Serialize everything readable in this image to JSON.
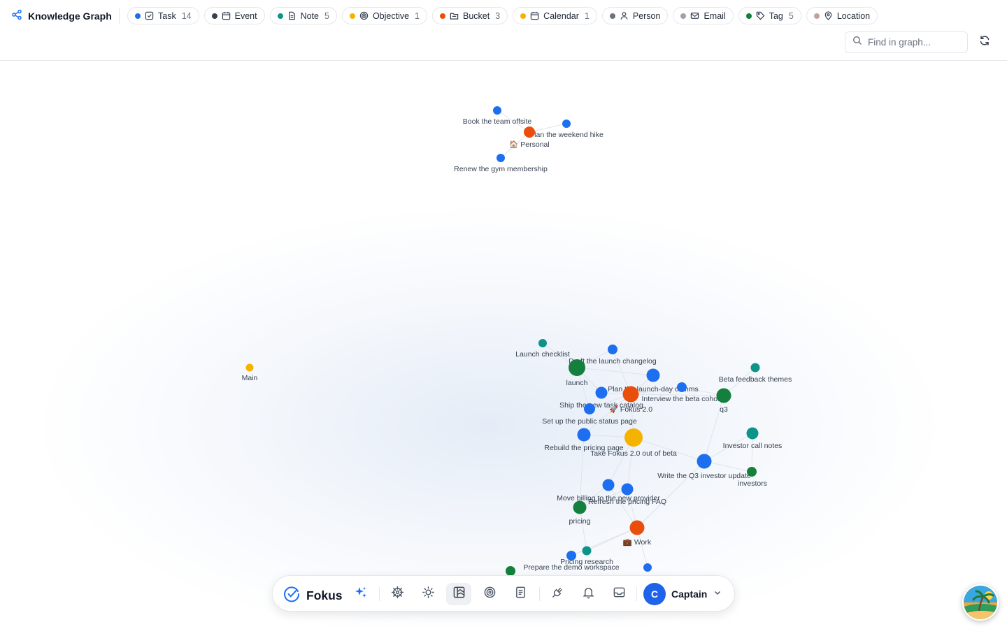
{
  "header": {
    "title": "Knowledge Graph",
    "chips": [
      {
        "label": "Task",
        "count": "14",
        "color": "#1e6ef0",
        "icon": "check-square-icon"
      },
      {
        "label": "Event",
        "count": "",
        "color": "#374151",
        "icon": "calendar-icon"
      },
      {
        "label": "Note",
        "count": "5",
        "color": "#0d9488",
        "icon": "file-text-icon"
      },
      {
        "label": "Objective",
        "count": "1",
        "color": "#f5b300",
        "icon": "target-icon"
      },
      {
        "label": "Bucket",
        "count": "3",
        "color": "#ea4e0c",
        "icon": "folder-icon"
      },
      {
        "label": "Calendar",
        "count": "1",
        "color": "#f5b300",
        "icon": "calendar-icon"
      },
      {
        "label": "Person",
        "count": "",
        "color": "#6b7280",
        "icon": "user-icon"
      },
      {
        "label": "Email",
        "count": "",
        "color": "#9ca3af",
        "icon": "mail-icon"
      },
      {
        "label": "Tag",
        "count": "5",
        "color": "#15803d",
        "icon": "tag-icon"
      },
      {
        "label": "Location",
        "count": "",
        "color": "#c4a29a",
        "icon": "map-pin-icon"
      }
    ],
    "search_placeholder": "Find in graph..."
  },
  "graph": {
    "colors": {
      "task": "#1e6ef0",
      "note": "#0d9488",
      "objective": "#f5b300",
      "bucket": "#ea4e0c",
      "tag": "#15803d",
      "calendar": "#f5b300"
    },
    "nodes": [
      {
        "id": "book",
        "type": "task",
        "label": "Book the team offsite"
      },
      {
        "id": "hike",
        "type": "task",
        "label": "Plan the weekend hike"
      },
      {
        "id": "personal",
        "type": "bucket",
        "label": "🏠 Personal"
      },
      {
        "id": "gym",
        "type": "task",
        "label": "Renew the gym membership"
      },
      {
        "id": "main",
        "type": "calendar",
        "label": "Main"
      },
      {
        "id": "checklist",
        "type": "note",
        "label": "Launch checklist"
      },
      {
        "id": "changelog",
        "type": "task",
        "label": "Draft the launch changelog"
      },
      {
        "id": "launch",
        "type": "tag",
        "label": "launch"
      },
      {
        "id": "comms",
        "type": "task",
        "label": "Plan the launch-day comms"
      },
      {
        "id": "cohort",
        "type": "task",
        "label": "Interview the beta cohort"
      },
      {
        "id": "betafb",
        "type": "note",
        "label": "Beta feedback themes"
      },
      {
        "id": "q3",
        "type": "tag",
        "label": "q3"
      },
      {
        "id": "catalog",
        "type": "task",
        "label": "Ship the new task catalog"
      },
      {
        "id": "fokus2",
        "type": "bucket",
        "label": "🚀 Fokus 2.0"
      },
      {
        "id": "status",
        "type": "task",
        "label": "Set up the public status page"
      },
      {
        "id": "rebuild",
        "type": "task",
        "label": "Rebuild the pricing page"
      },
      {
        "id": "objective",
        "type": "objective",
        "label": "Take Fokus 2.0 out of beta"
      },
      {
        "id": "callnotes",
        "type": "note",
        "label": "Investor call notes"
      },
      {
        "id": "q3update",
        "type": "task",
        "label": "Write the Q3 investor update"
      },
      {
        "id": "investors",
        "type": "tag",
        "label": "investors"
      },
      {
        "id": "billing",
        "type": "task",
        "label": "Move billing to the new provider"
      },
      {
        "id": "faq",
        "type": "task",
        "label": "Refresh the pricing FAQ"
      },
      {
        "id": "pricing",
        "type": "tag",
        "label": "pricing"
      },
      {
        "id": "work",
        "type": "bucket",
        "label": "💼 Work"
      },
      {
        "id": "research",
        "type": "note",
        "label": "Pricing research"
      },
      {
        "id": "demo",
        "type": "task",
        "label": "Prepare the demo workspace"
      },
      {
        "id": "tagbottom",
        "type": "tag",
        "label": ""
      },
      {
        "id": "taskbottom",
        "type": "task",
        "label": ""
      }
    ]
  },
  "dock": {
    "brand": "Fokus",
    "items": [
      {
        "name": "sparkles-icon"
      },
      {
        "name": "helm-icon"
      },
      {
        "name": "sun-icon"
      },
      {
        "name": "graph-view-icon"
      },
      {
        "name": "target-icon"
      },
      {
        "name": "notes-icon"
      },
      {
        "name": "plug-icon"
      },
      {
        "name": "bell-icon"
      },
      {
        "name": "inbox-icon"
      }
    ],
    "user": {
      "initial": "C",
      "name": "Captain"
    }
  }
}
